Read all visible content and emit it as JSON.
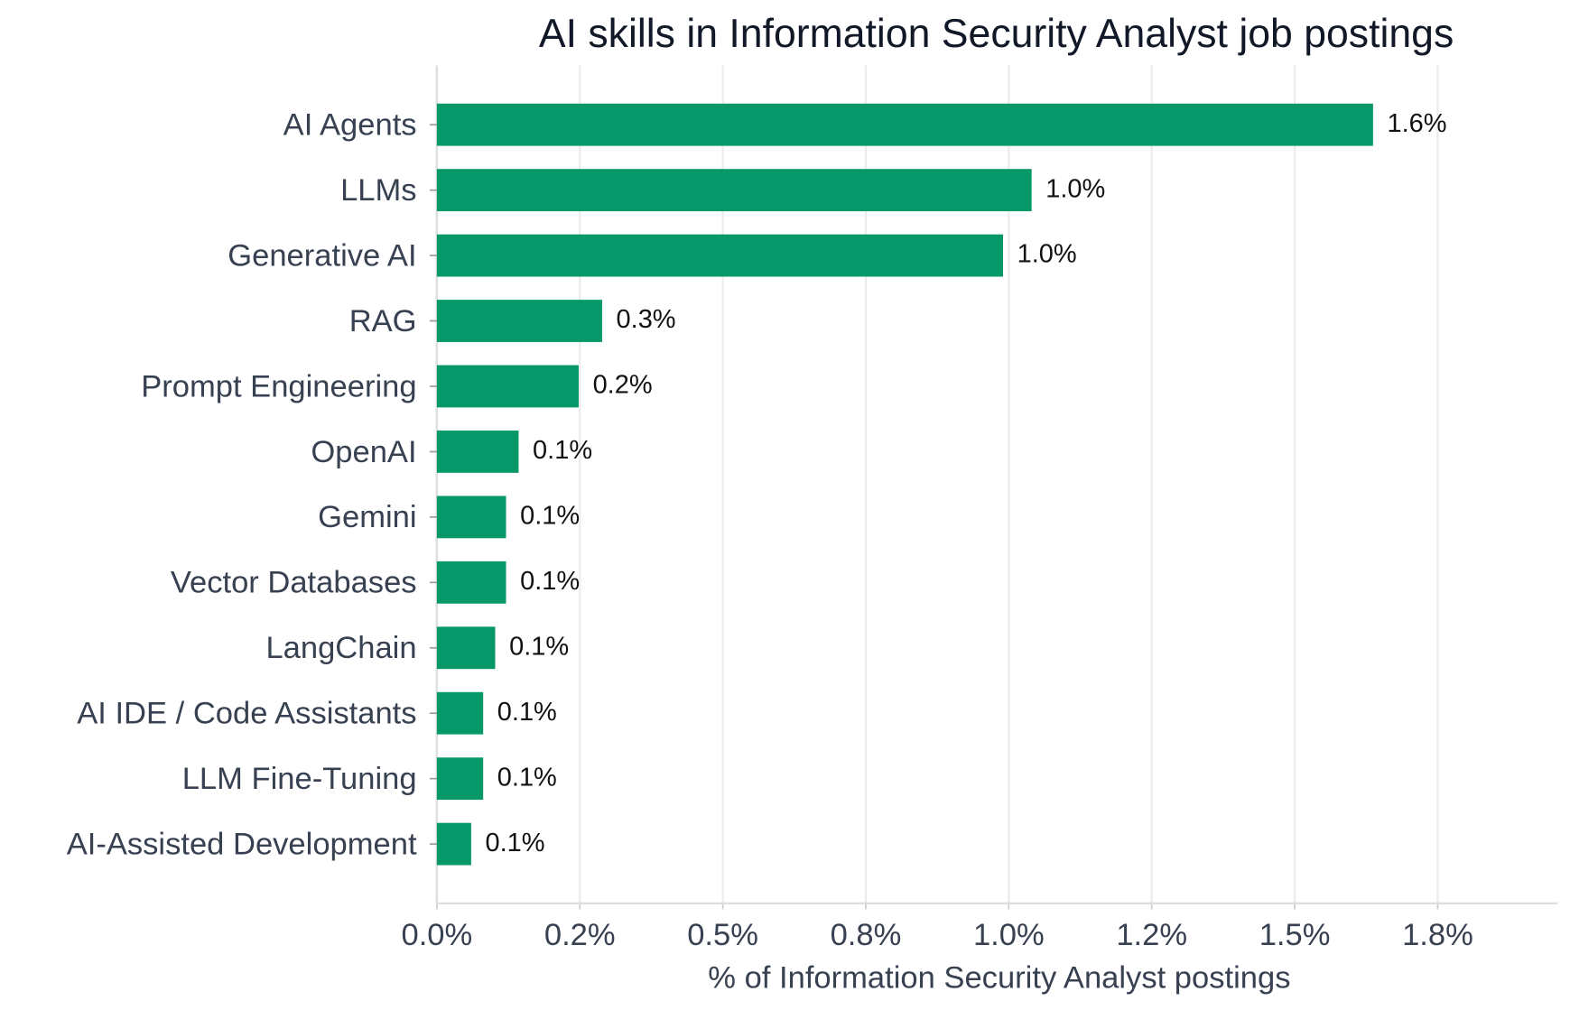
{
  "chart_data": {
    "type": "barh",
    "title": "AI skills in Information Security Analyst job postings",
    "xlabel": "% of Information Security Analyst postings",
    "categories": [
      "AI Agents",
      "LLMs",
      "Generative AI",
      "RAG",
      "Prompt Engineering",
      "OpenAI",
      "Gemini",
      "Vector Databases",
      "LangChain",
      "AI IDE / Code Assistants",
      "LLM Fine-Tuning",
      "AI-Assisted Development"
    ],
    "values": [
      1.637,
      1.04,
      0.99,
      0.289,
      0.248,
      0.143,
      0.121,
      0.121,
      0.102,
      0.081,
      0.081,
      0.06
    ],
    "value_labels": [
      "1.6%",
      "1.0%",
      "1.0%",
      "0.3%",
      "0.2%",
      "0.1%",
      "0.1%",
      "0.1%",
      "0.1%",
      "0.1%",
      "0.1%",
      "0.1%"
    ],
    "color": "#069869",
    "xlim": [
      0,
      1.96
    ],
    "xticks": [
      {
        "value": 0,
        "label": "0.0%"
      },
      {
        "value": 0.25,
        "label": "0.2%"
      },
      {
        "value": 0.5,
        "label": "0.5%"
      },
      {
        "value": 0.75,
        "label": "0.8%"
      },
      {
        "value": 1.0,
        "label": "1.0%"
      },
      {
        "value": 1.25,
        "label": "1.2%"
      },
      {
        "value": 1.5,
        "label": "1.5%"
      },
      {
        "value": 1.75,
        "label": "1.8%"
      }
    ],
    "grid": true
  }
}
